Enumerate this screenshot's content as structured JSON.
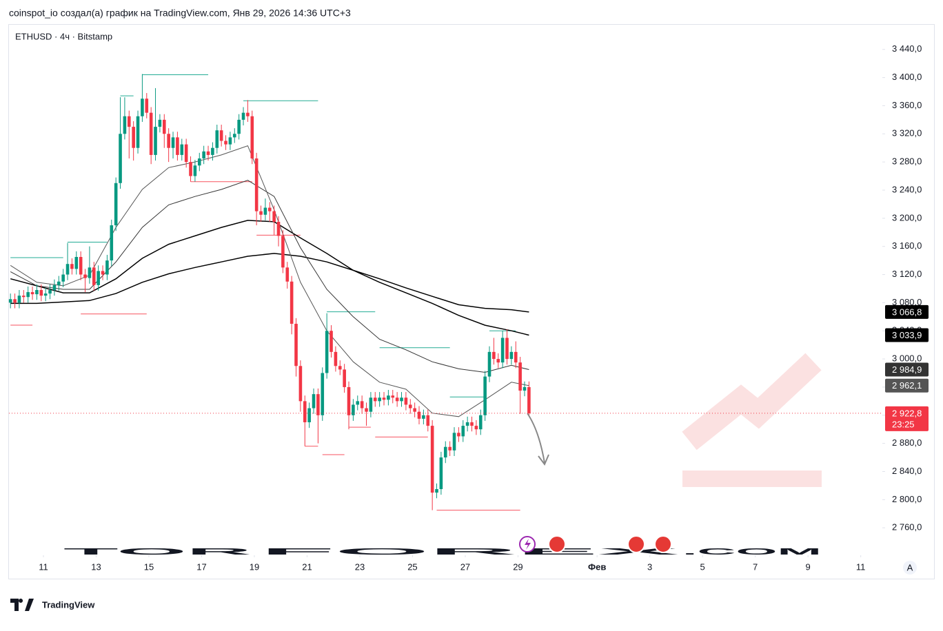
{
  "header": {
    "attribution": "coinspot_io создал(а) график на TradingView.com, Янв 29, 2026 14:36 UTC+3"
  },
  "footer": {
    "logo": "TradingView"
  },
  "watermark": {
    "left": "TOR",
    "middle": "FOREX",
    "right": ".COM"
  },
  "scale_button": "A",
  "chart_data": {
    "type": "candlestick",
    "title": "ETHUSD · 4ч · Bitstamp",
    "up_color": "#089981",
    "down_color": "#f23645",
    "xlim": [
      "2026-01-09T16:38",
      "2026-02-11T19:40"
    ],
    "ylim": [
      2721,
      3475
    ],
    "xticks": [
      {
        "value": "2026-01-11",
        "label": "11"
      },
      {
        "value": "2026-01-13",
        "label": "13"
      },
      {
        "value": "2026-01-15",
        "label": "15"
      },
      {
        "value": "2026-01-17",
        "label": "17"
      },
      {
        "value": "2026-01-19",
        "label": "19"
      },
      {
        "value": "2026-01-21",
        "label": "21"
      },
      {
        "value": "2026-01-23",
        "label": "23"
      },
      {
        "value": "2026-01-25",
        "label": "25"
      },
      {
        "value": "2026-01-27",
        "label": "27"
      },
      {
        "value": "2026-01-29",
        "label": "29"
      },
      {
        "value": "2026-02-01",
        "label": "Фев"
      },
      {
        "value": "2026-02-03",
        "label": "3"
      },
      {
        "value": "2026-02-05",
        "label": "5"
      },
      {
        "value": "2026-02-07",
        "label": "7"
      },
      {
        "value": "2026-02-09",
        "label": "9"
      },
      {
        "value": "2026-02-11",
        "label": "11"
      }
    ],
    "yticks": [
      {
        "value": 2760,
        "label": "2 760,0"
      },
      {
        "value": 2800,
        "label": "2 800,0"
      },
      {
        "value": 2840,
        "label": "2 840,0"
      },
      {
        "value": 2880,
        "label": "2 880,0"
      },
      {
        "value": 2920,
        "label": "2 920,0"
      },
      {
        "value": 2960,
        "label": "2 960,0"
      },
      {
        "value": 3000,
        "label": "3 000,0"
      },
      {
        "value": 3040,
        "label": "3 040,0"
      },
      {
        "value": 3080,
        "label": "3 080,0"
      },
      {
        "value": 3120,
        "label": "3 120,0"
      },
      {
        "value": 3160,
        "label": "3 160,0"
      },
      {
        "value": 3200,
        "label": "3 200,0"
      },
      {
        "value": 3240,
        "label": "3 240,0"
      },
      {
        "value": 3280,
        "label": "3 280,0"
      },
      {
        "value": 3320,
        "label": "3 320,0"
      },
      {
        "value": 3360,
        "label": "3 360,0"
      },
      {
        "value": 3400,
        "label": "3 400,0"
      },
      {
        "value": 3440,
        "label": "3 440,0"
      }
    ],
    "x": [
      "2026-01-09T16:00",
      "2026-01-09T20:00",
      "2026-01-10T00:00",
      "2026-01-10T04:00",
      "2026-01-10T08:00",
      "2026-01-10T12:00",
      "2026-01-10T16:00",
      "2026-01-10T20:00",
      "2026-01-11T00:00",
      "2026-01-11T04:00",
      "2026-01-11T08:00",
      "2026-01-11T12:00",
      "2026-01-11T16:00",
      "2026-01-11T20:00",
      "2026-01-12T00:00",
      "2026-01-12T04:00",
      "2026-01-12T08:00",
      "2026-01-12T12:00",
      "2026-01-12T16:00",
      "2026-01-12T20:00",
      "2026-01-13T00:00",
      "2026-01-13T04:00",
      "2026-01-13T08:00",
      "2026-01-13T12:00",
      "2026-01-13T16:00",
      "2026-01-13T20:00",
      "2026-01-14T00:00",
      "2026-01-14T04:00",
      "2026-01-14T08:00",
      "2026-01-14T12:00",
      "2026-01-14T16:00",
      "2026-01-14T20:00",
      "2026-01-15T00:00",
      "2026-01-15T04:00",
      "2026-01-15T08:00",
      "2026-01-15T12:00",
      "2026-01-15T16:00",
      "2026-01-15T20:00",
      "2026-01-16T00:00",
      "2026-01-16T04:00",
      "2026-01-16T08:00",
      "2026-01-16T12:00",
      "2026-01-16T16:00",
      "2026-01-16T20:00",
      "2026-01-17T00:00",
      "2026-01-17T04:00",
      "2026-01-17T08:00",
      "2026-01-17T12:00",
      "2026-01-17T16:00",
      "2026-01-17T20:00",
      "2026-01-18T00:00",
      "2026-01-18T04:00",
      "2026-01-18T08:00",
      "2026-01-18T12:00",
      "2026-01-18T16:00",
      "2026-01-18T20:00",
      "2026-01-19T00:00",
      "2026-01-19T04:00",
      "2026-01-19T08:00",
      "2026-01-19T12:00",
      "2026-01-19T16:00",
      "2026-01-19T20:00",
      "2026-01-20T00:00",
      "2026-01-20T04:00",
      "2026-01-20T08:00",
      "2026-01-20T12:00",
      "2026-01-20T16:00",
      "2026-01-20T20:00",
      "2026-01-21T00:00",
      "2026-01-21T04:00",
      "2026-01-21T08:00",
      "2026-01-21T12:00",
      "2026-01-21T16:00",
      "2026-01-21T20:00",
      "2026-01-22T00:00",
      "2026-01-22T04:00",
      "2026-01-22T08:00",
      "2026-01-22T12:00",
      "2026-01-22T16:00",
      "2026-01-22T20:00",
      "2026-01-23T00:00",
      "2026-01-23T04:00",
      "2026-01-23T08:00",
      "2026-01-23T12:00",
      "2026-01-23T16:00",
      "2026-01-23T20:00",
      "2026-01-24T00:00",
      "2026-01-24T04:00",
      "2026-01-24T08:00",
      "2026-01-24T12:00",
      "2026-01-24T16:00",
      "2026-01-24T20:00",
      "2026-01-25T00:00",
      "2026-01-25T04:00",
      "2026-01-25T08:00",
      "2026-01-25T12:00",
      "2026-01-25T16:00",
      "2026-01-25T20:00",
      "2026-01-26T00:00",
      "2026-01-26T04:00",
      "2026-01-26T08:00",
      "2026-01-26T12:00",
      "2026-01-26T16:00",
      "2026-01-26T20:00",
      "2026-01-27T00:00",
      "2026-01-27T04:00",
      "2026-01-27T08:00",
      "2026-01-27T12:00",
      "2026-01-27T16:00",
      "2026-01-27T20:00",
      "2026-01-28T00:00",
      "2026-01-28T04:00",
      "2026-01-28T08:00",
      "2026-01-28T12:00",
      "2026-01-28T16:00",
      "2026-01-28T20:00",
      "2026-01-29T00:00",
      "2026-01-29T04:00",
      "2026-01-29T08:00"
    ],
    "open": [
      3080,
      3085,
      3080,
      3090,
      3088,
      3095,
      3092,
      3098,
      3090,
      3093,
      3098,
      3105,
      3110,
      3120,
      3135,
      3128,
      3145,
      3120,
      3115,
      3130,
      3105,
      3125,
      3120,
      3140,
      3190,
      3250,
      3320,
      3345,
      3330,
      3300,
      3345,
      3370,
      3350,
      3290,
      3330,
      3340,
      3320,
      3300,
      3315,
      3290,
      3305,
      3280,
      3260,
      3275,
      3285,
      3295,
      3290,
      3300,
      3325,
      3310,
      3305,
      3315,
      3320,
      3340,
      3350,
      3345,
      3285,
      3210,
      3205,
      3215,
      3210,
      3195,
      3175,
      3130,
      3110,
      3050,
      2990,
      2940,
      2910,
      2930,
      2950,
      2920,
      2980,
      3040,
      3010,
      2990,
      2985,
      2960,
      2920,
      2935,
      2940,
      2930,
      2925,
      2945,
      2940,
      2945,
      2942,
      2948,
      2945,
      2940,
      2945,
      2935,
      2930,
      2925,
      2915,
      2920,
      2905,
      2810,
      2815,
      2860,
      2875,
      2870,
      2895,
      2890,
      2905,
      2910,
      2905,
      2900,
      2920,
      2975,
      3010,
      3000,
      2995,
      3030,
      3000,
      3010,
      2995,
      2955,
      2960
    ],
    "high": [
      3093,
      3093,
      3098,
      3098,
      3103,
      3103,
      3106,
      3106,
      3101,
      3106,
      3113,
      3118,
      3128,
      3165,
      3143,
      3153,
      3153,
      3128,
      3160,
      3138,
      3133,
      3133,
      3148,
      3198,
      3258,
      3372,
      3372,
      3353,
      3338,
      3353,
      3405,
      3378,
      3358,
      3385,
      3348,
      3348,
      3328,
      3323,
      3323,
      3313,
      3313,
      3288,
      3283,
      3293,
      3303,
      3303,
      3308,
      3333,
      3333,
      3318,
      3323,
      3328,
      3348,
      3358,
      3368,
      3353,
      3293,
      3218,
      3228,
      3223,
      3218,
      3203,
      3183,
      3138,
      3118,
      3058,
      2998,
      2948,
      2938,
      2958,
      2958,
      2988,
      3065,
      3048,
      3018,
      2998,
      2993,
      2968,
      2943,
      2948,
      2948,
      2938,
      2953,
      2953,
      2953,
      2953,
      2956,
      2956,
      2953,
      2953,
      2953,
      2943,
      2938,
      2933,
      2928,
      2928,
      2913,
      2823,
      2868,
      2883,
      2883,
      2903,
      2903,
      2913,
      2918,
      2918,
      2913,
      2928,
      2983,
      3018,
      3030,
      3008,
      3040,
      3042,
      3018,
      3025,
      3003,
      2968,
      2968
    ],
    "low": [
      3072,
      3072,
      3072,
      3080,
      3080,
      3084,
      3084,
      3082,
      3082,
      3085,
      3090,
      3097,
      3102,
      3112,
      3120,
      3120,
      3112,
      3095,
      3107,
      3097,
      3097,
      3112,
      3112,
      3132,
      3182,
      3242,
      3312,
      3285,
      3282,
      3292,
      3337,
      3342,
      3277,
      3282,
      3322,
      3300,
      3280,
      3285,
      3282,
      3282,
      3272,
      3252,
      3252,
      3267,
      3277,
      3282,
      3282,
      3292,
      3302,
      3297,
      3297,
      3307,
      3312,
      3332,
      3337,
      3277,
      3190,
      3195,
      3197,
      3195,
      3176,
      3160,
      3122,
      3100,
      3035,
      2975,
      2925,
      2876,
      2902,
      2922,
      2880,
      2912,
      2972,
      3002,
      2982,
      2977,
      2952,
      2900,
      2912,
      2927,
      2922,
      2905,
      2917,
      2932,
      2932,
      2934,
      2934,
      2937,
      2932,
      2932,
      2927,
      2922,
      2917,
      2907,
      2907,
      2897,
      2785,
      2802,
      2807,
      2852,
      2862,
      2862,
      2882,
      2882,
      2897,
      2897,
      2892,
      2892,
      2912,
      2967,
      2992,
      2987,
      2987,
      2992,
      2992,
      2987,
      2922,
      2947,
      2920
    ],
    "close": [
      3085,
      3080,
      3090,
      3088,
      3095,
      3092,
      3098,
      3090,
      3093,
      3098,
      3105,
      3110,
      3120,
      3135,
      3128,
      3145,
      3120,
      3115,
      3130,
      3105,
      3125,
      3120,
      3140,
      3190,
      3250,
      3320,
      3345,
      3330,
      3300,
      3345,
      3370,
      3350,
      3290,
      3330,
      3340,
      3320,
      3300,
      3315,
      3290,
      3305,
      3280,
      3260,
      3275,
      3285,
      3295,
      3290,
      3300,
      3325,
      3310,
      3305,
      3315,
      3320,
      3340,
      3350,
      3345,
      3285,
      3210,
      3205,
      3215,
      3210,
      3195,
      3175,
      3130,
      3110,
      3050,
      2990,
      2940,
      2910,
      2930,
      2950,
      2920,
      2980,
      3040,
      3010,
      2990,
      2985,
      2960,
      2920,
      2935,
      2940,
      2930,
      2925,
      2945,
      2940,
      2945,
      2942,
      2948,
      2945,
      2940,
      2945,
      2935,
      2930,
      2925,
      2915,
      2920,
      2905,
      2810,
      2815,
      2860,
      2875,
      2870,
      2895,
      2890,
      2905,
      2910,
      2905,
      2900,
      2920,
      2975,
      3010,
      3000,
      2995,
      3030,
      3000,
      3010,
      2995,
      2955,
      2960,
      2922.8
    ],
    "lines": [
      {
        "color": "#000000",
        "x": [
          "2026-01-09T16:00",
          "2026-01-10T16:00",
          "2026-01-11T16:00",
          "2026-01-12T16:00",
          "2026-01-13T16:00",
          "2026-01-14T16:00",
          "2026-01-15T16:00",
          "2026-01-16T16:00",
          "2026-01-17T16:00",
          "2026-01-18T16:00",
          "2026-01-19T16:00",
          "2026-01-20T16:00",
          "2026-01-21T16:00",
          "2026-01-22T16:00",
          "2026-01-23T16:00",
          "2026-01-24T16:00",
          "2026-01-25T16:00",
          "2026-01-26T16:00",
          "2026-01-27T16:00",
          "2026-01-28T16:00",
          "2026-01-29T08:00"
        ],
        "values": [
          3079,
          3079,
          3081,
          3083,
          3093,
          3109,
          3121,
          3130,
          3138,
          3146,
          3150,
          3146,
          3138,
          3126,
          3114,
          3101,
          3089,
          3077,
          3072,
          3070,
          3066.8
        ]
      },
      {
        "color": "#000000",
        "x": [
          "2026-01-09T16:00",
          "2026-01-10T16:00",
          "2026-01-11T16:00",
          "2026-01-12T16:00",
          "2026-01-13T16:00",
          "2026-01-14T16:00",
          "2026-01-15T16:00",
          "2026-01-16T16:00",
          "2026-01-17T16:00",
          "2026-01-18T16:00",
          "2026-01-19T16:00",
          "2026-01-20T16:00",
          "2026-01-21T16:00",
          "2026-01-22T16:00",
          "2026-01-23T16:00",
          "2026-01-24T16:00",
          "2026-01-25T16:00",
          "2026-01-26T16:00",
          "2026-01-27T16:00",
          "2026-01-28T16:00",
          "2026-01-29T08:00"
        ],
        "values": [
          3114,
          3104,
          3094,
          3094,
          3114,
          3143,
          3163,
          3175,
          3187,
          3197,
          3195,
          3172,
          3150,
          3126,
          3109,
          3094,
          3079,
          3062,
          3048,
          3040,
          3033.9
        ]
      },
      {
        "color": "#333333",
        "x": [
          "2026-01-09T16:00",
          "2026-01-10T16:00",
          "2026-01-11T16:00",
          "2026-01-12T16:00",
          "2026-01-13T16:00",
          "2026-01-14T16:00",
          "2026-01-15T16:00",
          "2026-01-16T16:00",
          "2026-01-17T16:00",
          "2026-01-18T16:00",
          "2026-01-19T16:00",
          "2026-01-20T16:00",
          "2026-01-21T16:00",
          "2026-01-22T16:00",
          "2026-01-23T16:00",
          "2026-01-24T16:00",
          "2026-01-25T16:00",
          "2026-01-26T16:00",
          "2026-01-27T16:00",
          "2026-01-28T16:00",
          "2026-01-29T08:00"
        ],
        "values": [
          3124,
          3104,
          3099,
          3099,
          3138,
          3187,
          3219,
          3231,
          3241,
          3254,
          3231,
          3158,
          3099,
          3060,
          3028,
          3013,
          2996,
          2986,
          2981,
          2991,
          2984.9
        ]
      },
      {
        "color": "#555555",
        "x": [
          "2026-01-09T16:00",
          "2026-01-10T16:00",
          "2026-01-11T16:00",
          "2026-01-12T16:00",
          "2026-01-13T16:00",
          "2026-01-14T16:00",
          "2026-01-15T16:00",
          "2026-01-16T16:00",
          "2026-01-17T16:00",
          "2026-01-18T16:00",
          "2026-01-19T16:00",
          "2026-01-20T16:00",
          "2026-01-21T16:00",
          "2026-01-22T16:00",
          "2026-01-23T16:00",
          "2026-01-24T16:00",
          "2026-01-25T16:00",
          "2026-01-26T16:00",
          "2026-01-27T16:00",
          "2026-01-28T16:00",
          "2026-01-29T08:00"
        ],
        "values": [
          3133,
          3109,
          3104,
          3119,
          3187,
          3241,
          3272,
          3280,
          3290,
          3303,
          3212,
          3109,
          3040,
          2996,
          2967,
          2957,
          2923,
          2918,
          2942,
          2967,
          2962.1
        ]
      }
    ],
    "pivots": [
      {
        "price": 3144,
        "from": "2026-01-09T16:00",
        "to": "2026-01-11T16:00",
        "color": "#22ab94"
      },
      {
        "price": 3166,
        "from": "2026-01-11T20:00",
        "to": "2026-01-13T08:00",
        "color": "#22ab94"
      },
      {
        "price": 3374,
        "from": "2026-01-13T20:00",
        "to": "2026-01-14T08:00",
        "color": "#22ab94"
      },
      {
        "price": 3404,
        "from": "2026-01-14T16:00",
        "to": "2026-01-17T04:00",
        "color": "#22ab94"
      },
      {
        "price": 3367,
        "from": "2026-01-18T12:00",
        "to": "2026-01-21T08:00",
        "color": "#22ab94"
      },
      {
        "price": 3067,
        "from": "2026-01-21T16:00",
        "to": "2026-01-23T12:00",
        "color": "#22ab94"
      },
      {
        "price": 3016,
        "from": "2026-01-23T16:00",
        "to": "2026-01-26T08:00",
        "color": "#22ab94"
      },
      {
        "price": 2946,
        "from": "2026-01-26T08:00",
        "to": "2026-01-27T16:00",
        "color": "#22ab94"
      },
      {
        "price": 3040,
        "from": "2026-01-27T20:00",
        "to": "2026-01-28T20:00",
        "color": "#22ab94"
      },
      {
        "price": 3048,
        "from": "2026-01-09T16:00",
        "to": "2026-01-10T12:00",
        "color": "#f7525f"
      },
      {
        "price": 3064,
        "from": "2026-01-12T08:00",
        "to": "2026-01-14T20:00",
        "color": "#f7525f"
      },
      {
        "price": 3252,
        "from": "2026-01-16T12:00",
        "to": "2026-01-18T20:00",
        "color": "#f7525f"
      },
      {
        "price": 3176,
        "from": "2026-01-19T00:00",
        "to": "2026-01-20T16:00",
        "color": "#f7525f"
      },
      {
        "price": 2876,
        "from": "2026-01-20T20:00",
        "to": "2026-01-21T08:00",
        "color": "#f7525f"
      },
      {
        "price": 2864,
        "from": "2026-01-21T12:00",
        "to": "2026-01-22T08:00",
        "color": "#f7525f"
      },
      {
        "price": 2903,
        "from": "2026-01-22T12:00",
        "to": "2026-01-23T08:00",
        "color": "#f7525f"
      },
      {
        "price": 2889,
        "from": "2026-01-23T12:00",
        "to": "2026-01-25T12:00",
        "color": "#f7525f"
      },
      {
        "price": 2785,
        "from": "2026-01-25T20:00",
        "to": "2026-01-29T00:00",
        "color": "#f7525f"
      }
    ],
    "price_labels": [
      {
        "value": 3066.8,
        "label": "3 066,8",
        "color": "#000000"
      },
      {
        "value": 3033.9,
        "label": "3 033,9",
        "color": "#000000"
      },
      {
        "value": 2984.9,
        "label": "2 984,9",
        "color": "#333333"
      },
      {
        "value": 2962.1,
        "label": "2 962,1",
        "color": "#555555"
      }
    ],
    "last_price": {
      "value": 2922.8,
      "label": "2 922,8",
      "countdown": "23:25",
      "color": "#f23645"
    }
  }
}
